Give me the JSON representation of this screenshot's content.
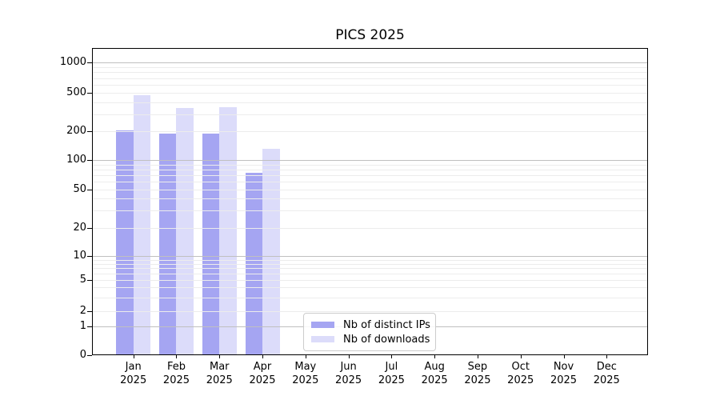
{
  "chart_data": {
    "type": "bar",
    "title": "PICS 2025",
    "year": "2025",
    "categories": [
      "Jan",
      "Feb",
      "Mar",
      "Apr",
      "May",
      "Jun",
      "Jul",
      "Aug",
      "Sep",
      "Oct",
      "Nov",
      "Dec"
    ],
    "series": [
      {
        "name": "Nb of distinct IPs",
        "color": "#a5a5f2",
        "values": [
          200,
          186,
          186,
          73,
          0,
          0,
          0,
          0,
          0,
          0,
          0,
          0
        ]
      },
      {
        "name": "Nb of downloads",
        "color": "#dcdcfa",
        "values": [
          460,
          340,
          348,
          130,
          0,
          0,
          0,
          0,
          0,
          0,
          0,
          0
        ]
      }
    ],
    "yscale": "symlog",
    "yticks": [
      0,
      1,
      2,
      5,
      10,
      20,
      50,
      100,
      200,
      500,
      1000
    ],
    "ylim": [
      0,
      1000
    ],
    "grid": true,
    "legend_position": "lower center",
    "colors": {
      "grid_major": "#c0c0c0",
      "grid_minor": "#ececec",
      "axis": "#000000",
      "background": "#ffffff"
    }
  }
}
